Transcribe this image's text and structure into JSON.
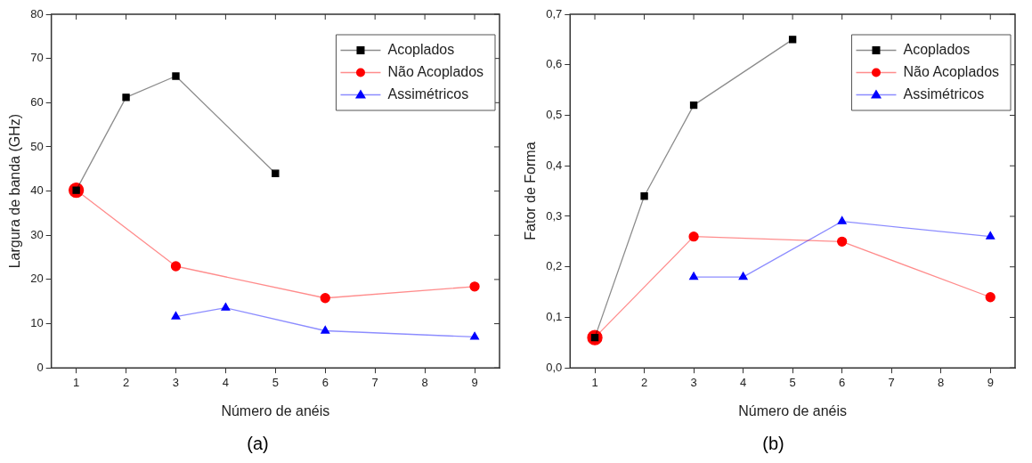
{
  "chart_data": [
    {
      "type": "line",
      "xlabel": "Número de anéis",
      "ylabel": "Largura de banda (GHz)",
      "xlim": [
        0.5,
        9.5
      ],
      "xticks": [
        1,
        2,
        3,
        4,
        5,
        6,
        7,
        8,
        9
      ],
      "ylim": [
        0,
        80
      ],
      "yticks": [
        0,
        10,
        20,
        30,
        40,
        50,
        60,
        70,
        80
      ],
      "legend": "top right",
      "annotations": [
        "(a)"
      ],
      "series": [
        {
          "name": "Acoplados",
          "color": "#000000",
          "marker": "square",
          "x": [
            1,
            2,
            3,
            5
          ],
          "values": [
            40.2,
            61.2,
            66,
            44
          ]
        },
        {
          "name": "Não Acoplados",
          "color": "#ff0000",
          "marker": "circle",
          "x": [
            1,
            3,
            6,
            9
          ],
          "values": [
            40.2,
            23,
            15.8,
            18.4
          ]
        },
        {
          "name": "Assimétricos",
          "color": "#0000ff",
          "marker": "triangle",
          "x": [
            3,
            4,
            6,
            9
          ],
          "values": [
            11.6,
            13.6,
            8.4,
            7
          ]
        }
      ]
    },
    {
      "type": "line",
      "xlabel": "Número de anéis",
      "ylabel": "Fator de Forma",
      "xlim": [
        0.5,
        9.5
      ],
      "xticks": [
        1,
        2,
        3,
        4,
        5,
        6,
        7,
        8,
        9
      ],
      "ylim": [
        0,
        0.7
      ],
      "yticks": [
        {
          "value": 0,
          "label": "0,0"
        },
        {
          "value": 0.1,
          "label": "0,1"
        },
        {
          "value": 0.2,
          "label": "0,2"
        },
        {
          "value": 0.3,
          "label": "0,3"
        },
        {
          "value": 0.4,
          "label": "0,4"
        },
        {
          "value": 0.5,
          "label": "0,5"
        },
        {
          "value": 0.6,
          "label": "0,6"
        },
        {
          "value": 0.7,
          "label": "0,7"
        }
      ],
      "legend": "top right",
      "annotations": [
        "(b)"
      ],
      "series": [
        {
          "name": "Acoplados",
          "color": "#000000",
          "marker": "square",
          "x": [
            1,
            2,
            3,
            5
          ],
          "values": [
            0.06,
            0.34,
            0.52,
            0.65
          ]
        },
        {
          "name": "Não Acoplados",
          "color": "#ff0000",
          "marker": "circle",
          "x": [
            1,
            3,
            6,
            9
          ],
          "values": [
            0.06,
            0.26,
            0.25,
            0.14
          ]
        },
        {
          "name": "Assimétricos",
          "color": "#0000ff",
          "marker": "triangle",
          "x": [
            3,
            4,
            6,
            9
          ],
          "values": [
            0.18,
            0.18,
            0.29,
            0.26
          ]
        }
      ]
    }
  ]
}
